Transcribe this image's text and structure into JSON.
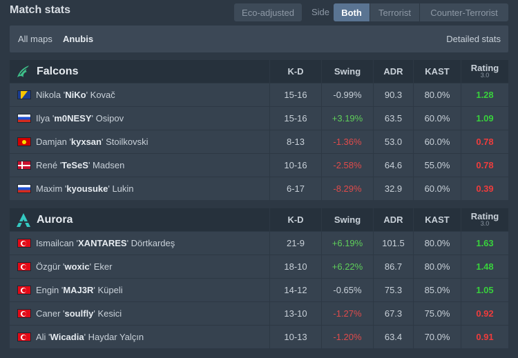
{
  "header": {
    "title": "Match stats",
    "eco_label": "Eco-adjusted",
    "side_label": "Side",
    "side_options": [
      "Both",
      "Terrorist",
      "Counter-Terrorist"
    ],
    "side_selected": "Both"
  },
  "filters": {
    "all_maps": "All maps",
    "map": "Anubis",
    "detailed": "Detailed stats"
  },
  "columns": {
    "kd": "K-D",
    "swing": "Swing",
    "adr": "ADR",
    "kast": "KAST",
    "rating": "Rating",
    "rating_version": "3.0"
  },
  "colors": {
    "positive": "#5fcf5a",
    "negative": "#e04b4b",
    "rating_high": "#38d13c",
    "rating_low": "#ef3c3c",
    "accent_active": "#5a7492",
    "falcons_logo": "#3ec18a",
    "aurora_logo": "#34c9c1"
  },
  "teams": [
    {
      "name": "Falcons",
      "logo_icon": "falcons-logo-icon",
      "players": [
        {
          "first": "Nikola '",
          "nick": "NiKo",
          "last": "' Kovač",
          "flag": "ba",
          "kd": "15-16",
          "swing": "-0.99%",
          "swing_sign": "neu",
          "adr": "90.3",
          "kast": "80.0%",
          "rating": "1.28",
          "rating_class": "high"
        },
        {
          "first": "Ilya '",
          "nick": "m0NESY",
          "last": "' Osipov",
          "flag": "ru",
          "kd": "15-16",
          "swing": "+3.19%",
          "swing_sign": "pos",
          "adr": "63.5",
          "kast": "60.0%",
          "rating": "1.09",
          "rating_class": "high"
        },
        {
          "first": "Damjan '",
          "nick": "kyxsan",
          "last": "' Stoilkovski",
          "flag": "mk",
          "kd": "8-13",
          "swing": "-1.36%",
          "swing_sign": "neg",
          "adr": "53.0",
          "kast": "60.0%",
          "rating": "0.78",
          "rating_class": "low"
        },
        {
          "first": "René '",
          "nick": "TeSeS",
          "last": "' Madsen",
          "flag": "dk",
          "kd": "10-16",
          "swing": "-2.58%",
          "swing_sign": "neg",
          "adr": "64.6",
          "kast": "55.0%",
          "rating": "0.78",
          "rating_class": "low"
        },
        {
          "first": "Maxim '",
          "nick": "kyousuke",
          "last": "' Lukin",
          "flag": "ru",
          "kd": "6-17",
          "swing": "-8.29%",
          "swing_sign": "neg",
          "adr": "32.9",
          "kast": "60.0%",
          "rating": "0.39",
          "rating_class": "low"
        }
      ]
    },
    {
      "name": "Aurora",
      "logo_icon": "aurora-logo-icon",
      "players": [
        {
          "first": "Ismailcan '",
          "nick": "XANTARES",
          "last": "' Dörtkardeş",
          "flag": "tr",
          "kd": "21-9",
          "swing": "+6.19%",
          "swing_sign": "pos",
          "adr": "101.5",
          "kast": "80.0%",
          "rating": "1.63",
          "rating_class": "high"
        },
        {
          "first": "Özgür '",
          "nick": "woxic",
          "last": "' Eker",
          "flag": "tr",
          "kd": "18-10",
          "swing": "+6.22%",
          "swing_sign": "pos",
          "adr": "86.7",
          "kast": "80.0%",
          "rating": "1.48",
          "rating_class": "high"
        },
        {
          "first": "Engin '",
          "nick": "MAJ3R",
          "last": "' Küpeli",
          "flag": "tr",
          "kd": "14-12",
          "swing": "-0.65%",
          "swing_sign": "neu",
          "adr": "75.3",
          "kast": "85.0%",
          "rating": "1.05",
          "rating_class": "high"
        },
        {
          "first": "Caner '",
          "nick": "soulfly",
          "last": "' Kesici",
          "flag": "tr",
          "kd": "13-10",
          "swing": "-1.27%",
          "swing_sign": "neg",
          "adr": "67.3",
          "kast": "75.0%",
          "rating": "0.92",
          "rating_class": "low"
        },
        {
          "first": "Ali '",
          "nick": "Wicadia",
          "last": "' Haydar Yalçın",
          "flag": "tr",
          "kd": "10-13",
          "swing": "-1.20%",
          "swing_sign": "neg",
          "adr": "63.4",
          "kast": "70.0%",
          "rating": "0.91",
          "rating_class": "low"
        }
      ]
    }
  ]
}
